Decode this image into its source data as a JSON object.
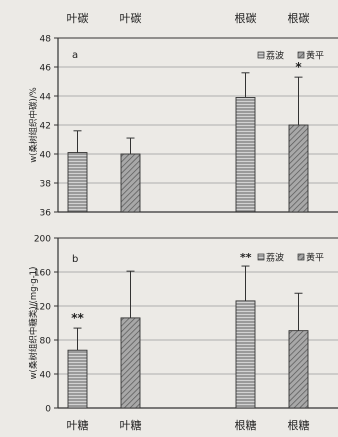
{
  "chart_data": [
    {
      "panel_label": "a",
      "type": "bar",
      "categories": [
        "叶碳",
        "叶碳",
        "根碳",
        "根碳"
      ],
      "series_names": [
        "荔波",
        "黄平"
      ],
      "values": [
        40.1,
        40.0,
        43.9,
        42.0
      ],
      "errors": [
        1.5,
        1.1,
        1.7,
        3.3
      ],
      "value_series": [
        0,
        1,
        0,
        1
      ],
      "top_labels": [
        "叶碳",
        "叶碳",
        "根碳",
        "根碳"
      ],
      "bottom_labels": [],
      "significance": [
        {
          "bar": 3,
          "mark": "*"
        }
      ],
      "ylabel": "w(桑树组织中碳)/%",
      "ylim": [
        36,
        48
      ],
      "yticks": [
        36,
        38,
        40,
        42,
        44,
        46,
        48
      ],
      "grid": true,
      "legend_position": "top-right"
    },
    {
      "panel_label": "b",
      "type": "bar",
      "categories": [
        "叶糖",
        "叶糖",
        "根糖",
        "根糖"
      ],
      "series_names": [
        "荔波",
        "黄平"
      ],
      "values": [
        68,
        106,
        126,
        91
      ],
      "errors": [
        26,
        55,
        41,
        44
      ],
      "value_series": [
        0,
        1,
        0,
        1
      ],
      "top_labels": [],
      "bottom_labels": [
        "叶糖",
        "叶糖",
        "根糖",
        "根糖"
      ],
      "significance": [
        {
          "bar": 0,
          "mark": "**"
        }
      ],
      "legend_significance": "**",
      "ylabel": "w(桑树组织中糖类)/(mg·g-1)",
      "ylim": [
        0,
        200
      ],
      "yticks": [
        0,
        40,
        80,
        120,
        160,
        200
      ],
      "grid": true,
      "legend_position": "top-right"
    }
  ],
  "colors": {
    "background": "#eceae6",
    "plot_background": "#eceae6",
    "axis": "#333333",
    "gridline": "#9a9a9a",
    "lb_fill": "#c9c9c9",
    "hp_fill": "#9d9d9d",
    "hatch": "#555555"
  }
}
